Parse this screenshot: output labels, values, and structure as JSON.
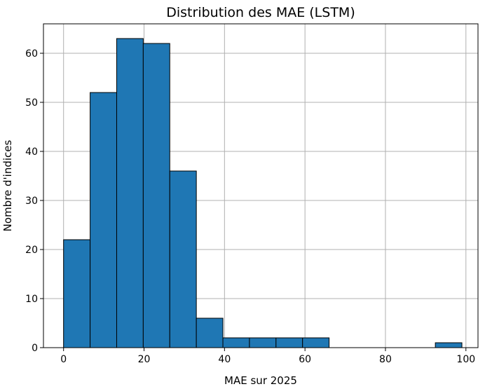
{
  "chart_data": {
    "type": "bar",
    "title": "Distribution des MAE (LSTM)",
    "xlabel": "MAE sur 2025",
    "ylabel": "Nombre d'indices",
    "grid": true,
    "bar_color": "#1f77b4",
    "edge_color": "#000000",
    "xlim": [
      -5.0,
      103.0
    ],
    "ylim": [
      0,
      66
    ],
    "xticks": [
      0,
      20,
      40,
      60,
      80,
      100
    ],
    "yticks": [
      0,
      10,
      20,
      30,
      40,
      50,
      60
    ],
    "bin_edges": [
      0.0,
      6.6,
      13.2,
      19.8,
      26.4,
      33.0,
      39.6,
      46.2,
      52.8,
      59.4,
      66.0,
      72.6,
      79.2,
      85.8,
      92.4,
      99.0
    ],
    "values": [
      22,
      52,
      63,
      62,
      36,
      6,
      2,
      2,
      2,
      2,
      0,
      0,
      0,
      0,
      1
    ]
  }
}
